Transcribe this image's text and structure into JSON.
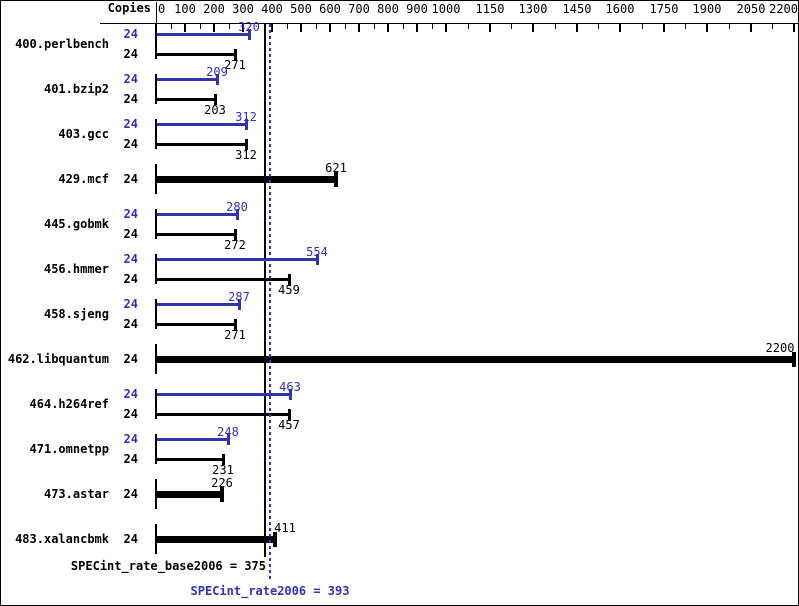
{
  "colors": {
    "peak_blue": "#3333aa",
    "base_black": "#000000",
    "background": "#ffffff"
  },
  "header": {
    "copies_label": "Copies"
  },
  "axis": {
    "min": 0,
    "max": 2200,
    "major_tick_values": [
      0,
      100,
      200,
      300,
      400,
      500,
      600,
      700,
      800,
      900,
      1000,
      1150,
      1300,
      1450,
      1600,
      1750,
      1900,
      2050,
      2200
    ],
    "minor_tick_values": [
      50,
      150,
      250,
      350,
      450,
      550,
      650,
      750,
      850,
      950,
      1075,
      1225,
      1375,
      1525,
      1675,
      1825,
      1975,
      2125
    ],
    "tick_labels": [
      "0",
      "100",
      "200",
      "300",
      "400",
      "500",
      "600",
      "700",
      "800",
      "900",
      "1000",
      "1150",
      "1300",
      "1450",
      "1600",
      "1750",
      "1900",
      "2050",
      "2200"
    ]
  },
  "reference_lines": {
    "base_value": 375,
    "peak_value": 393
  },
  "summary": {
    "base_label": "SPECint_rate_base2006",
    "base_value": "375",
    "base_text": "SPECint_rate_base2006 = 375",
    "peak_label": "SPECint_rate2006",
    "peak_value": "393",
    "peak_text": "SPECint_rate2006 = 393"
  },
  "chart_data": {
    "type": "bar",
    "orientation": "horizontal",
    "title": "",
    "xlabel": "",
    "ylabel": "Copies",
    "xlim": [
      0,
      2200
    ],
    "grid": false,
    "legend_position": "none",
    "benchmarks": [
      {
        "name": "400.perlbench",
        "copies": 24,
        "bars": [
          {
            "kind": "peak",
            "value": 320
          },
          {
            "kind": "base",
            "value": 271
          }
        ]
      },
      {
        "name": "401.bzip2",
        "copies": 24,
        "bars": [
          {
            "kind": "peak",
            "value": 209
          },
          {
            "kind": "base",
            "value": 203
          }
        ]
      },
      {
        "name": "403.gcc",
        "copies": 24,
        "bars": [
          {
            "kind": "peak",
            "value": 312
          },
          {
            "kind": "base",
            "value": 312
          }
        ]
      },
      {
        "name": "429.mcf",
        "copies": 24,
        "bars": [
          {
            "kind": "both",
            "value": 621
          }
        ]
      },
      {
        "name": "445.gobmk",
        "copies": 24,
        "bars": [
          {
            "kind": "peak",
            "value": 280
          },
          {
            "kind": "base",
            "value": 272
          }
        ]
      },
      {
        "name": "456.hmmer",
        "copies": 24,
        "bars": [
          {
            "kind": "peak",
            "value": 554
          },
          {
            "kind": "base",
            "value": 459
          }
        ]
      },
      {
        "name": "458.sjeng",
        "copies": 24,
        "bars": [
          {
            "kind": "peak",
            "value": 287
          },
          {
            "kind": "base",
            "value": 271
          }
        ]
      },
      {
        "name": "462.libquantum",
        "copies": 24,
        "bars": [
          {
            "kind": "both",
            "value": 2200
          }
        ]
      },
      {
        "name": "464.h264ref",
        "copies": 24,
        "bars": [
          {
            "kind": "peak",
            "value": 463
          },
          {
            "kind": "base",
            "value": 457
          }
        ]
      },
      {
        "name": "471.omnetpp",
        "copies": 24,
        "bars": [
          {
            "kind": "peak",
            "value": 248
          },
          {
            "kind": "base",
            "value": 231
          }
        ]
      },
      {
        "name": "473.astar",
        "copies": 24,
        "bars": [
          {
            "kind": "both",
            "value": 226
          }
        ]
      },
      {
        "name": "483.xalancbmk",
        "copies": 24,
        "bars": [
          {
            "kind": "both",
            "value": 411,
            "label_dx": 10
          }
        ]
      }
    ],
    "summary": {
      "SPECint_rate_base2006": 375,
      "SPECint_rate2006": 393
    }
  }
}
